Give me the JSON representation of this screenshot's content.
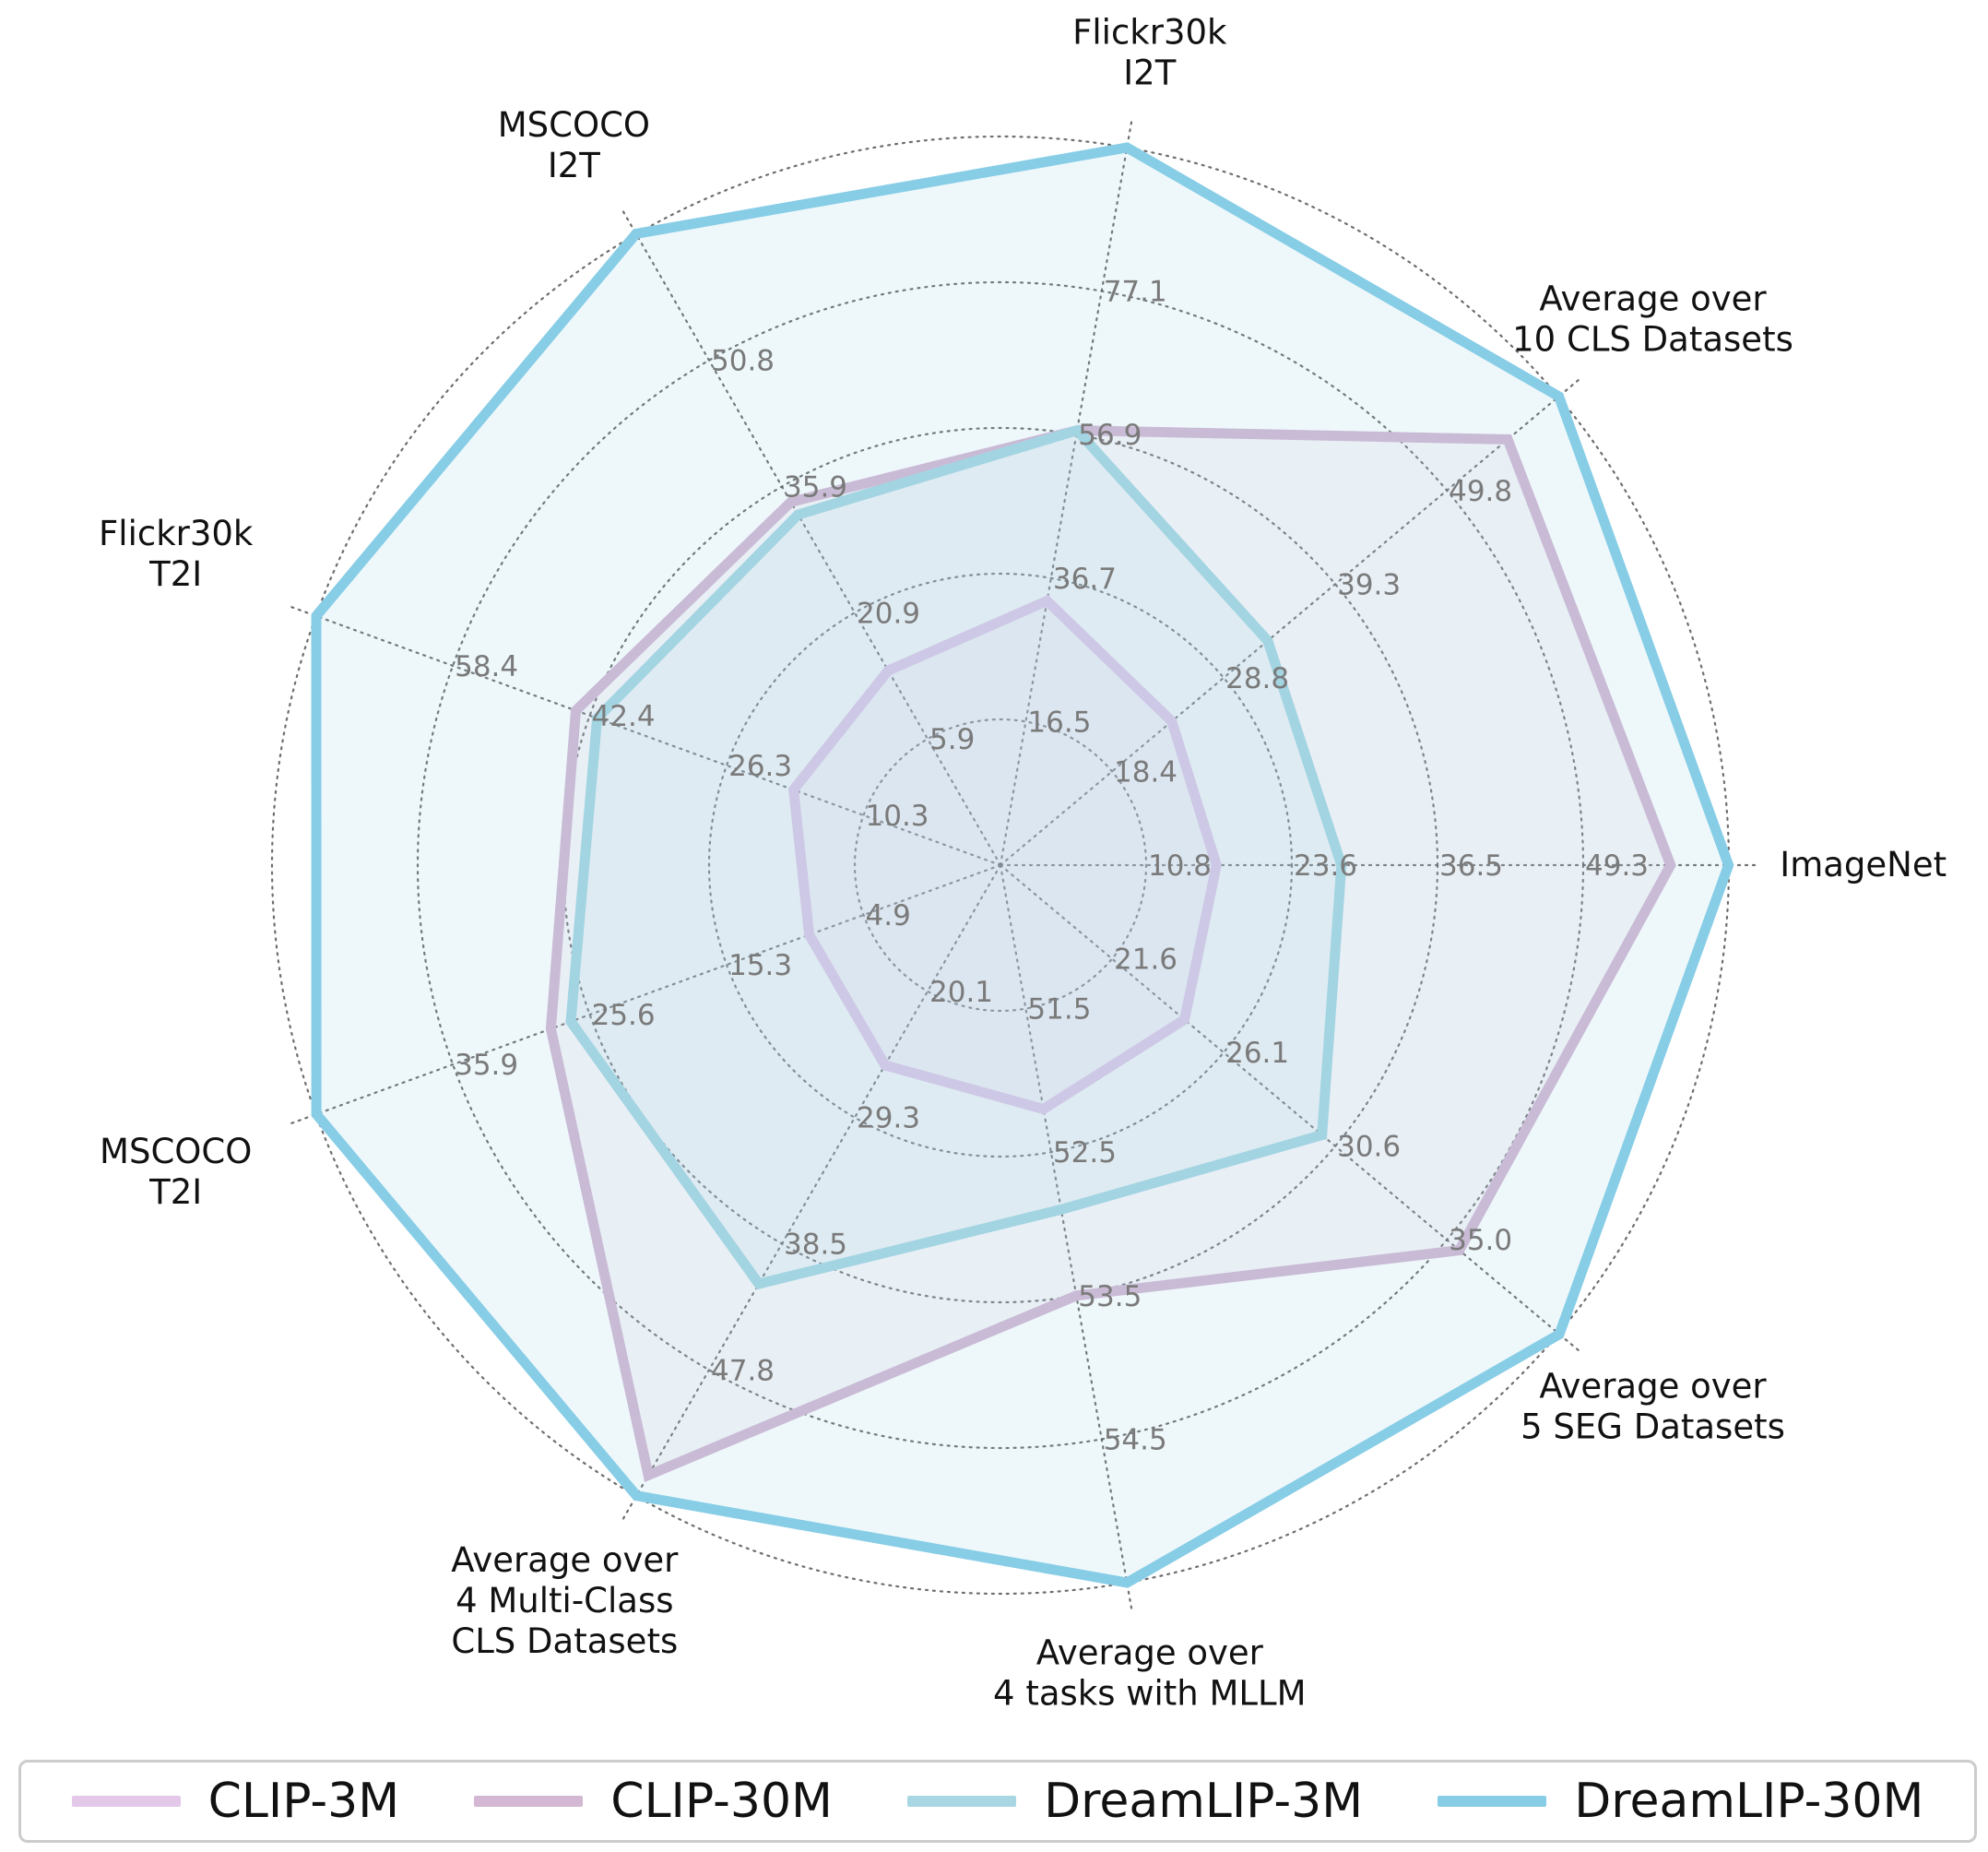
{
  "chart_data": {
    "type": "radar",
    "axes": [
      {
        "label": [
          "ImageNet"
        ],
        "ticks": [
          "10.8",
          "23.6",
          "36.5",
          "49.3"
        ],
        "max": 62.1
      },
      {
        "label": [
          "Average over",
          "10 CLS Datasets"
        ],
        "ticks": [
          "18.4",
          "28.8",
          "39.3",
          "49.8"
        ],
        "max": 60.3
      },
      {
        "label": [
          "Flickr30k",
          "I2T"
        ],
        "ticks": [
          "16.5",
          "36.7",
          "56.9",
          "77.1"
        ],
        "max": 97.3
      },
      {
        "label": [
          "MSCOCO",
          "I2T"
        ],
        "ticks": [
          "5.9",
          "20.9",
          "35.9",
          "50.8"
        ],
        "max": 65.8
      },
      {
        "label": [
          "Flickr30k",
          "T2I"
        ],
        "ticks": [
          "10.3",
          "26.3",
          "42.4",
          "58.4"
        ],
        "max": 74.4
      },
      {
        "label": [
          "MSCOCO",
          "T2I"
        ],
        "ticks": [
          "4.9",
          "15.3",
          "25.6",
          "35.9"
        ],
        "max": 46.2
      },
      {
        "label": [
          "Average over",
          "4 Multi-Class",
          "CLS Datasets"
        ],
        "ticks": [
          "20.1",
          "29.3",
          "38.5",
          "47.8"
        ],
        "max": 57.0
      },
      {
        "label": [
          "Average over",
          "4 tasks with MLLM"
        ],
        "ticks": [
          "51.5",
          "52.5",
          "53.5",
          "54.5"
        ],
        "max": 55.5
      },
      {
        "label": [
          "Average over",
          "5 SEG Datasets"
        ],
        "ticks": [
          "21.6",
          "26.1",
          "30.6",
          "35.0"
        ],
        "max": 39.5
      }
    ],
    "grid": true,
    "legend": "bottom",
    "series": [
      {
        "name": "CLIP-3M",
        "color": "#e3c8ea",
        "values": [
          17.0,
          24.0,
          33.5,
          14.0,
          18.5,
          9.0,
          25.5,
          52.2,
          24.5
        ]
      },
      {
        "name": "CLIP-30M",
        "color": "#d4b8d3",
        "values": [
          57.0,
          55.5,
          57.5,
          34.0,
          44.0,
          28.5,
          55.5,
          53.5,
          35.5
        ]
      },
      {
        "name": "DreamLIP-3M",
        "color": "#a8d6e2",
        "values": [
          28.0,
          33.0,
          57.5,
          32.5,
          41.5,
          27.0,
          41.5,
          52.9,
          30.0
        ]
      },
      {
        "name": "DreamLIP-30M",
        "color": "#87cde6",
        "values": [
          62.1,
          60.3,
          97.3,
          65.8,
          74.4,
          46.2,
          57.0,
          55.5,
          39.5
        ]
      }
    ]
  }
}
